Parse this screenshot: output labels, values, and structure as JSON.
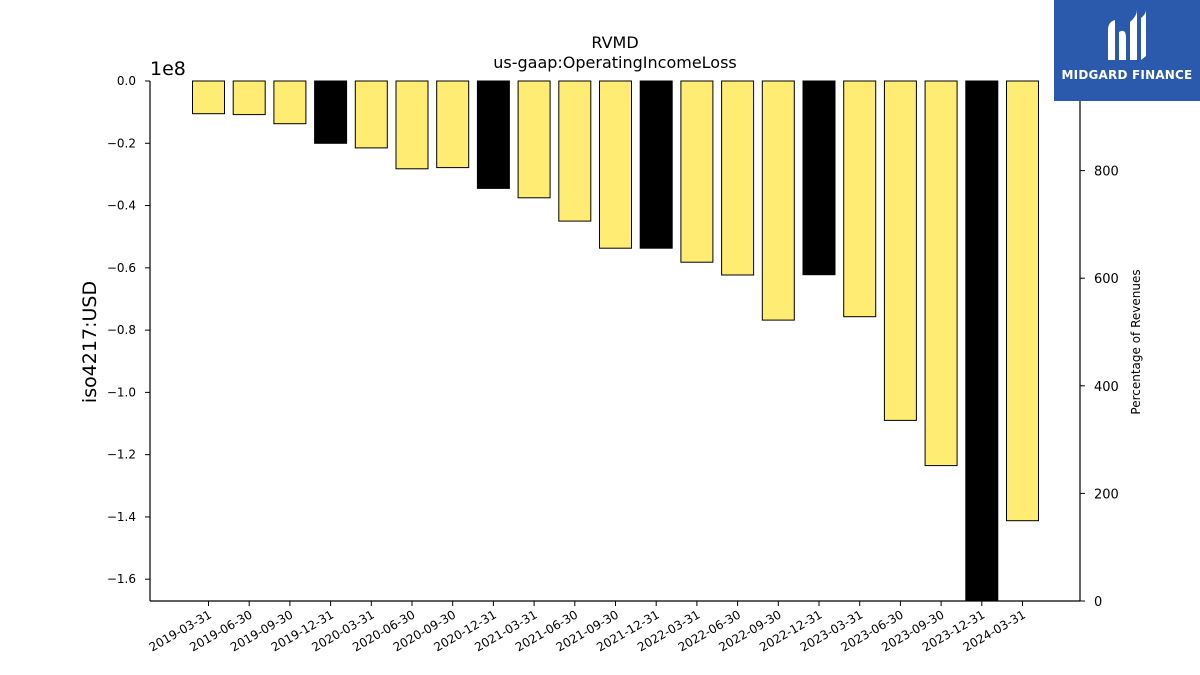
{
  "chart_data": {
    "type": "bar",
    "title": "RVMD",
    "subtitle": "us-gaap:OperatingIncomeLoss",
    "ylabel": "iso4217:USD",
    "y_offset_label": "1e8",
    "y2label": "Percentage of Revenues",
    "ylim": [
      -1.67,
      0.0
    ],
    "y_ticks": [
      "0.0",
      "−0.2",
      "−0.4",
      "−0.6",
      "−0.8",
      "−1.0",
      "−1.2",
      "−1.4",
      "−1.6"
    ],
    "y_tick_values": [
      0.0,
      -0.2,
      -0.4,
      -0.6,
      -0.8,
      -1.0,
      -1.2,
      -1.4,
      -1.6
    ],
    "y2lim": [
      0,
      1000
    ],
    "y2_ticks": [
      "0",
      "200",
      "400",
      "600",
      "800"
    ],
    "y2_tick_values": [
      0,
      200,
      400,
      600,
      800
    ],
    "categories": [
      "2019-03-31",
      "2019-06-30",
      "2019-09-30",
      "2019-12-31",
      "2020-03-31",
      "2020-06-30",
      "2020-09-30",
      "2020-12-31",
      "2021-03-31",
      "2021-06-30",
      "2021-09-30",
      "2021-12-31",
      "2022-03-31",
      "2022-06-30",
      "2022-09-30",
      "2022-12-31",
      "2023-03-31",
      "2023-06-30",
      "2023-09-30",
      "2023-12-31",
      "2024-03-31"
    ],
    "values": [
      -0.105,
      -0.108,
      -0.137,
      -0.2,
      -0.215,
      -0.282,
      -0.278,
      -0.345,
      -0.375,
      -0.45,
      -0.537,
      -0.537,
      -0.582,
      -0.623,
      -0.768,
      -0.622,
      -0.757,
      -1.09,
      -1.235,
      -1.67,
      -1.412
    ],
    "annual": [
      false,
      false,
      false,
      true,
      false,
      false,
      false,
      true,
      false,
      false,
      false,
      true,
      false,
      false,
      false,
      true,
      false,
      false,
      false,
      true,
      false
    ],
    "colors": {
      "quarter": "#ffec73",
      "annual": "#000000",
      "edge": "#000000"
    },
    "grid": false
  },
  "logo": {
    "text": "MIDGARD FINANCE",
    "background": "#2b5aad"
  }
}
